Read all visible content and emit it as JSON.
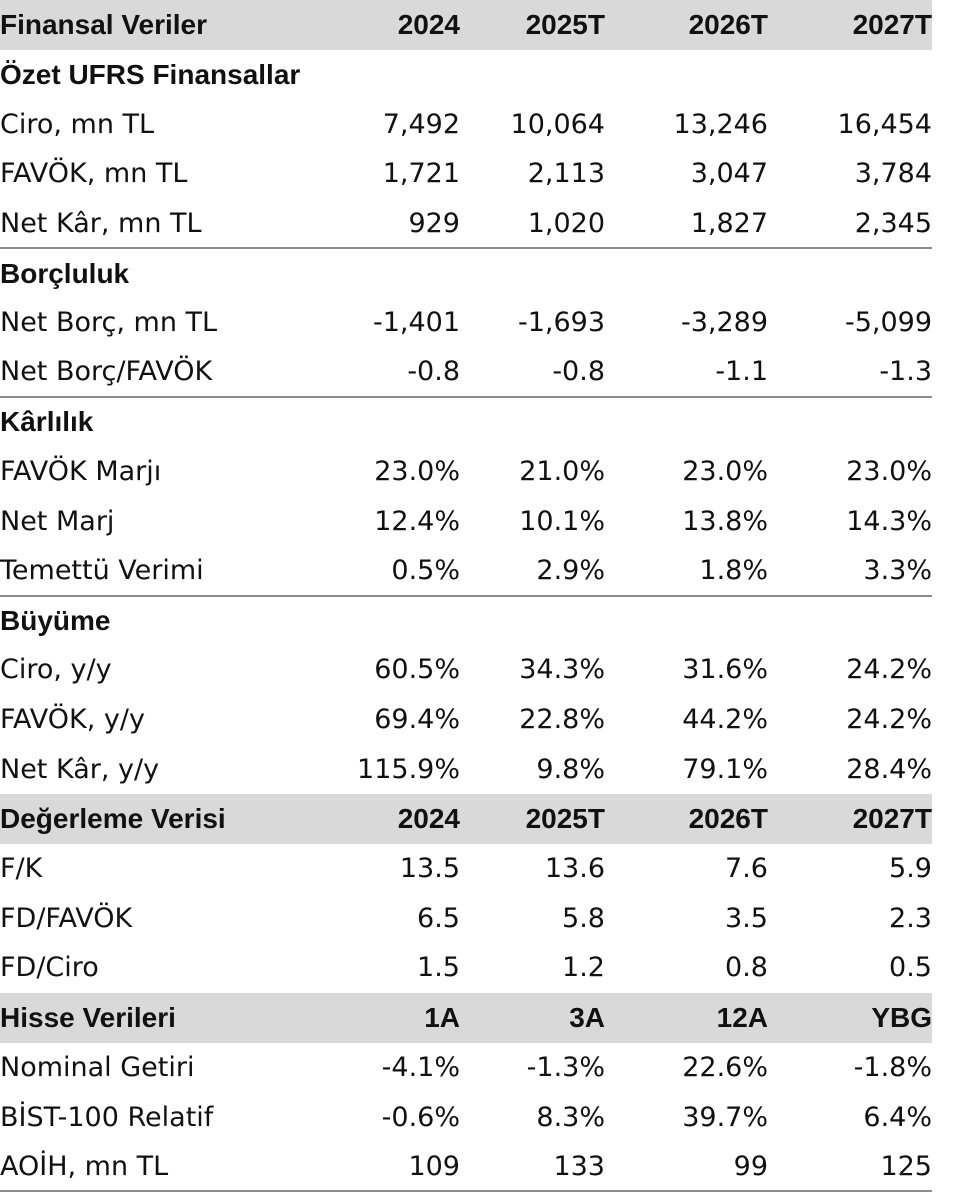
{
  "table": {
    "rows": [
      {
        "kind": "header",
        "cells": [
          "Finansal Veriler",
          "2024",
          "2025T",
          "2026T",
          "2027T"
        ]
      },
      {
        "kind": "section",
        "cells": [
          "Özet UFRS Finansallar"
        ]
      },
      {
        "kind": "data",
        "cells": [
          "Ciro, mn TL",
          "7,492",
          "10,064",
          "13,246",
          "16,454"
        ]
      },
      {
        "kind": "data",
        "cells": [
          "FAVÖK, mn TL",
          "1,721",
          "2,113",
          "3,047",
          "3,784"
        ]
      },
      {
        "kind": "data",
        "cells": [
          "Net Kâr, mn TL",
          "929",
          "1,020",
          "1,827",
          "2,345"
        ]
      },
      {
        "kind": "section",
        "border": true,
        "cells": [
          "Borçluluk"
        ]
      },
      {
        "kind": "data",
        "cells": [
          "Net Borç, mn TL",
          "-1,401",
          "-1,693",
          "-3,289",
          "-5,099"
        ]
      },
      {
        "kind": "data",
        "cells": [
          "Net Borç/FAVÖK",
          "-0.8",
          "-0.8",
          "-1.1",
          "-1.3"
        ]
      },
      {
        "kind": "section",
        "border": true,
        "cells": [
          "Kârlılık"
        ]
      },
      {
        "kind": "data",
        "cells": [
          "FAVÖK Marjı",
          "23.0%",
          "21.0%",
          "23.0%",
          "23.0%"
        ]
      },
      {
        "kind": "data",
        "cells": [
          "Net Marj",
          "12.4%",
          "10.1%",
          "13.8%",
          "14.3%"
        ]
      },
      {
        "kind": "data",
        "cells": [
          "Temettü Verimi",
          "0.5%",
          "2.9%",
          "1.8%",
          "3.3%"
        ]
      },
      {
        "kind": "section",
        "border": true,
        "cells": [
          "Büyüme"
        ]
      },
      {
        "kind": "data",
        "cells": [
          "Ciro, y/y",
          "60.5%",
          "34.3%",
          "31.6%",
          "24.2%"
        ]
      },
      {
        "kind": "data",
        "cells": [
          "FAVÖK, y/y",
          "69.4%",
          "22.8%",
          "44.2%",
          "24.2%"
        ]
      },
      {
        "kind": "data",
        "cells": [
          "Net Kâr, y/y",
          "115.9%",
          "9.8%",
          "79.1%",
          "28.4%"
        ]
      },
      {
        "kind": "header",
        "cells": [
          "Değerleme Verisi",
          "2024",
          "2025T",
          "2026T",
          "2027T"
        ]
      },
      {
        "kind": "data",
        "cells": [
          "F/K",
          "13.5",
          "13.6",
          "7.6",
          "5.9"
        ]
      },
      {
        "kind": "data",
        "cells": [
          "FD/FAVÖK",
          "6.5",
          "5.8",
          "3.5",
          "2.3"
        ]
      },
      {
        "kind": "data",
        "cells": [
          "FD/Ciro",
          "1.5",
          "1.2",
          "0.8",
          "0.5"
        ]
      },
      {
        "kind": "header",
        "cells": [
          "Hisse Verileri",
          "1A",
          "3A",
          "12A",
          "YBG"
        ]
      },
      {
        "kind": "data",
        "cells": [
          "Nominal Getiri",
          "-4.1%",
          "-1.3%",
          "22.6%",
          "-1.8%"
        ]
      },
      {
        "kind": "data",
        "cells": [
          "BİST-100 Relatif",
          "-0.6%",
          "8.3%",
          "39.7%",
          "6.4%"
        ]
      },
      {
        "kind": "data",
        "last": true,
        "cells": [
          "AOİH, mn TL",
          "109",
          "133",
          "99",
          "125"
        ]
      }
    ]
  }
}
